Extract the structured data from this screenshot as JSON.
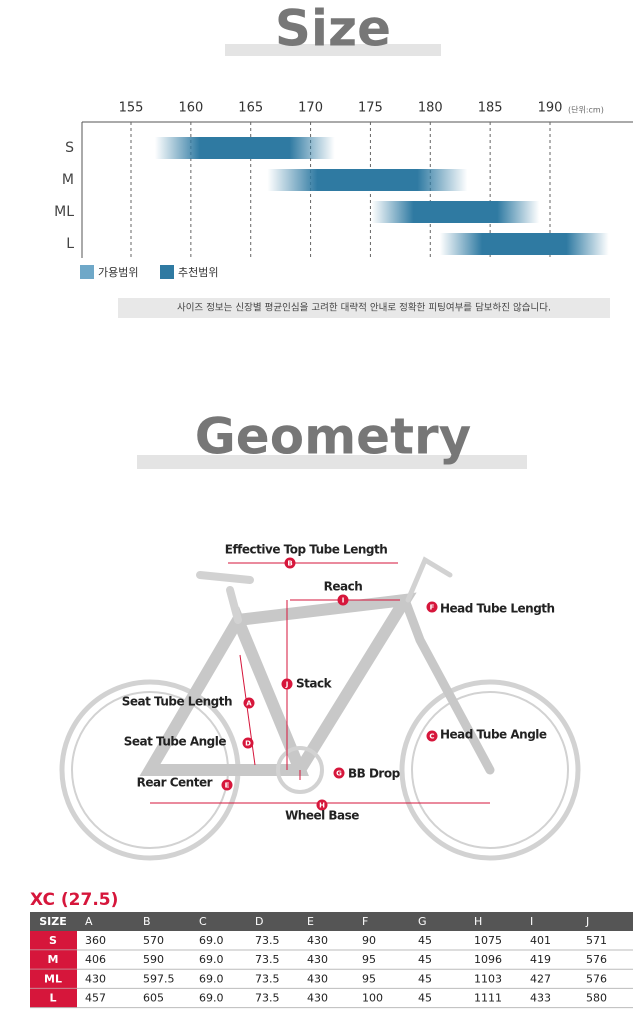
{
  "size": {
    "title": "Size",
    "ticks": [
      155,
      160,
      165,
      170,
      175,
      180,
      185,
      190
    ],
    "unit": "(단위:cm)",
    "rows": [
      {
        "label": "S",
        "from": 157,
        "to": 172
      },
      {
        "label": "M",
        "from": 166.4,
        "to": 183.1
      },
      {
        "label": "ML",
        "from": 175.1,
        "to": 189.1
      },
      {
        "label": "L",
        "from": 180.8,
        "to": 194.9
      }
    ],
    "legend": [
      {
        "name": "가용범위",
        "color": "#6fa8c8"
      },
      {
        "name": "추천범위",
        "color": "#2f7aa2"
      }
    ],
    "note": "사이즈 정보는 신장별 평균인심을 고려한 대략적 안내로 정확한 피팅여부를 담보하진 않습니다."
  },
  "geometry": {
    "title": "Geometry",
    "labels": [
      {
        "letter": "B",
        "text": "Effective Top Tube Length"
      },
      {
        "letter": "I",
        "text": "Reach"
      },
      {
        "letter": "F",
        "text": "Head Tube Length"
      },
      {
        "letter": "J",
        "text": "Stack"
      },
      {
        "letter": "A",
        "text": "Seat Tube Length"
      },
      {
        "letter": "D",
        "text": "Seat Tube Angle"
      },
      {
        "letter": "C",
        "text": "Head Tube Angle"
      },
      {
        "letter": "G",
        "text": "BB Drop"
      },
      {
        "letter": "E",
        "text": "Rear Center"
      },
      {
        "letter": "H",
        "text": "Wheel Base"
      }
    ]
  },
  "table": {
    "title": "XC (27.5)",
    "header": [
      "SIZE",
      "A",
      "B",
      "C",
      "D",
      "E",
      "F",
      "G",
      "H",
      "I",
      "J"
    ],
    "rows": [
      [
        "S",
        "360",
        "570",
        "69.0",
        "73.5",
        "430",
        "90",
        "45",
        "1075",
        "401",
        "571"
      ],
      [
        "M",
        "406",
        "590",
        "69.0",
        "73.5",
        "430",
        "95",
        "45",
        "1096",
        "419",
        "576"
      ],
      [
        "ML",
        "430",
        "597.5",
        "69.0",
        "73.5",
        "430",
        "95",
        "45",
        "1103",
        "427",
        "576"
      ],
      [
        "L",
        "457",
        "605",
        "69.0",
        "73.5",
        "430",
        "100",
        "45",
        "1111",
        "433",
        "580"
      ]
    ]
  }
}
